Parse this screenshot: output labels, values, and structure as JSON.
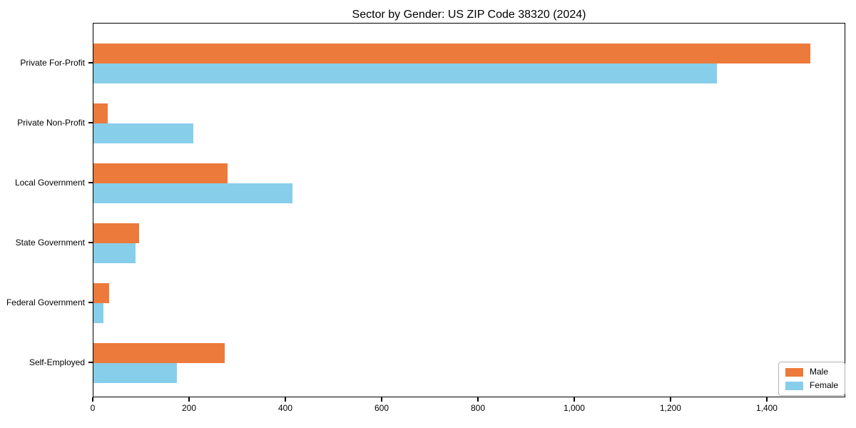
{
  "chart_data": {
    "type": "bar",
    "orientation": "horizontal",
    "title": "Sector by Gender: US ZIP Code 38320 (2024)",
    "categories": [
      "Private For-Profit",
      "Private Non-Profit",
      "Local Government",
      "State Government",
      "Federal Government",
      "Self-Employed"
    ],
    "series": [
      {
        "name": "Male",
        "color": "#ec7a3b",
        "values": [
          1489,
          29,
          278,
          95,
          32,
          272
        ]
      },
      {
        "name": "Female",
        "color": "#87ceeb",
        "values": [
          1295,
          207,
          414,
          88,
          21,
          173
        ]
      }
    ],
    "xlabel": "",
    "ylabel": "",
    "xlim": [
      0,
      1563
    ],
    "x_ticks": [
      0,
      200,
      400,
      600,
      800,
      1000,
      1200,
      1400
    ],
    "x_tick_labels": [
      "0",
      "200",
      "400",
      "600",
      "800",
      "1,000",
      "1,200",
      "1,400"
    ],
    "grid": false,
    "legend": {
      "position": "lower right"
    },
    "colors": {
      "axis": "#000000",
      "background": "#ffffff",
      "legend_border": "#b3b3b3"
    }
  }
}
